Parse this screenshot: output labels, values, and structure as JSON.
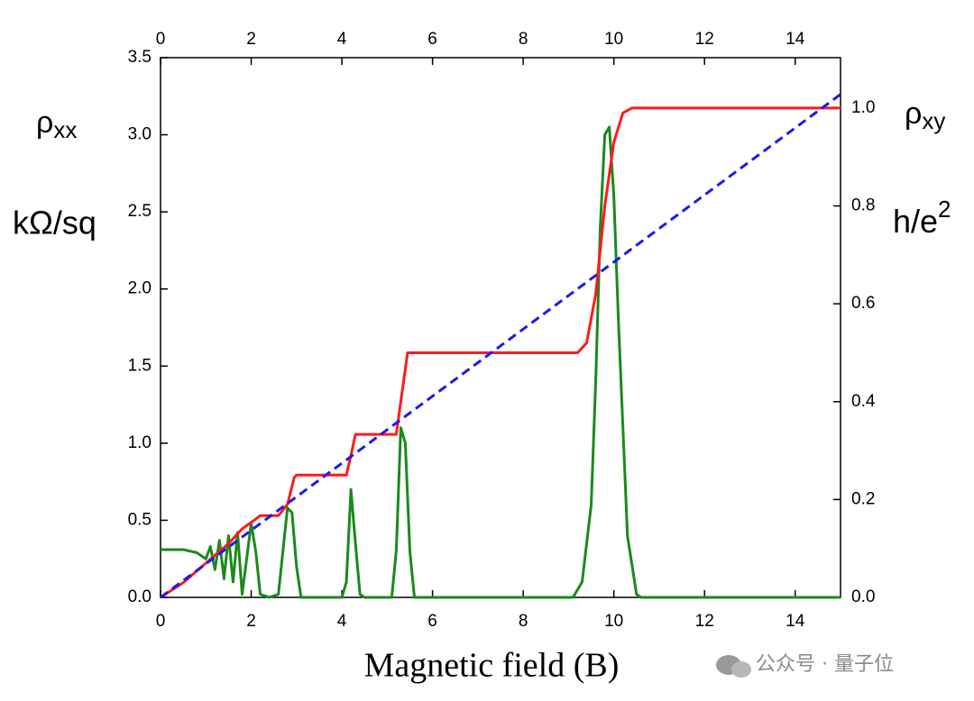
{
  "chart_data": {
    "type": "line",
    "x_label": "Magnetic field (B)",
    "y_label": {
      "symbol": "ρ",
      "subscript": "xx",
      "unit": "kΩ/sq"
    },
    "y2_label": {
      "symbol": "ρ",
      "subscript": "xy",
      "unit": "h/e",
      "unit_superscript": "2"
    },
    "xlim": [
      0,
      15
    ],
    "xticks": [
      0,
      2,
      4,
      6,
      8,
      10,
      12,
      14
    ],
    "ylim": [
      0,
      3.5
    ],
    "yticks": [
      {
        "value": 0,
        "label": "0.0"
      },
      0.5,
      {
        "value": 1,
        "label": "1.0"
      },
      1.5,
      {
        "value": 2,
        "label": "2.0"
      },
      2.5,
      {
        "value": 3,
        "label": "3.0"
      },
      3.5
    ],
    "y2lim": [
      0,
      1.103
    ],
    "y2ticks": [
      {
        "value": 0,
        "label": "0.0"
      },
      0.2,
      0.4,
      0.6,
      0.8,
      {
        "value": 1,
        "label": "1.0"
      }
    ],
    "series": [
      {
        "color": "#1a8a1a",
        "style": "solid",
        "axis": "y",
        "x": [
          0,
          0.5,
          0.8,
          1.0,
          1.1,
          1.2,
          1.3,
          1.4,
          1.5,
          1.6,
          1.7,
          1.8,
          1.9,
          2.0,
          2.1,
          2.2,
          2.4,
          2.6,
          2.7,
          2.8,
          2.9,
          3.0,
          3.1,
          4.0,
          4.1,
          4.2,
          4.3,
          4.4,
          4.5,
          5.1,
          5.2,
          5.3,
          5.4,
          5.5,
          5.6,
          9.1,
          9.3,
          9.5,
          9.6,
          9.7,
          9.8,
          9.9,
          10.0,
          10.1,
          10.3,
          10.5,
          10.6,
          15
        ],
        "values": [
          0.31,
          0.31,
          0.29,
          0.25,
          0.33,
          0.18,
          0.37,
          0.12,
          0.4,
          0.1,
          0.42,
          0.02,
          0.25,
          0.48,
          0.3,
          0.02,
          0,
          0.02,
          0.3,
          0.58,
          0.55,
          0.2,
          0,
          0,
          0.1,
          0.7,
          0.35,
          0.02,
          0,
          0,
          0.3,
          1.1,
          1.0,
          0.3,
          0,
          0,
          0.1,
          0.6,
          1.4,
          2.4,
          3.0,
          3.05,
          2.6,
          1.8,
          0.4,
          0.02,
          0,
          0
        ]
      },
      {
        "color": "#ff1a1a",
        "style": "solid",
        "axis": "y2",
        "x": [
          0,
          0.5,
          1,
          1.5,
          1.8,
          2.1,
          2.2,
          2.6,
          2.8,
          2.95,
          3.0,
          4.1,
          4.2,
          4.3,
          5.2,
          5.3,
          5.45,
          9.2,
          9.4,
          9.6,
          9.8,
          10.0,
          10.2,
          10.4,
          15
        ],
        "values": [
          0,
          0.03,
          0.07,
          0.11,
          0.14,
          0.16,
          0.167,
          0.167,
          0.19,
          0.245,
          0.25,
          0.25,
          0.29,
          0.333,
          0.333,
          0.4,
          0.5,
          0.5,
          0.52,
          0.62,
          0.8,
          0.93,
          0.99,
          1.0,
          1.0
        ]
      },
      {
        "color": "#1a1aee",
        "style": "dashed",
        "axis": "y2",
        "x": [
          0,
          15
        ],
        "values": [
          0,
          1.028
        ]
      }
    ],
    "watermark": "公众号 · 量子位"
  }
}
